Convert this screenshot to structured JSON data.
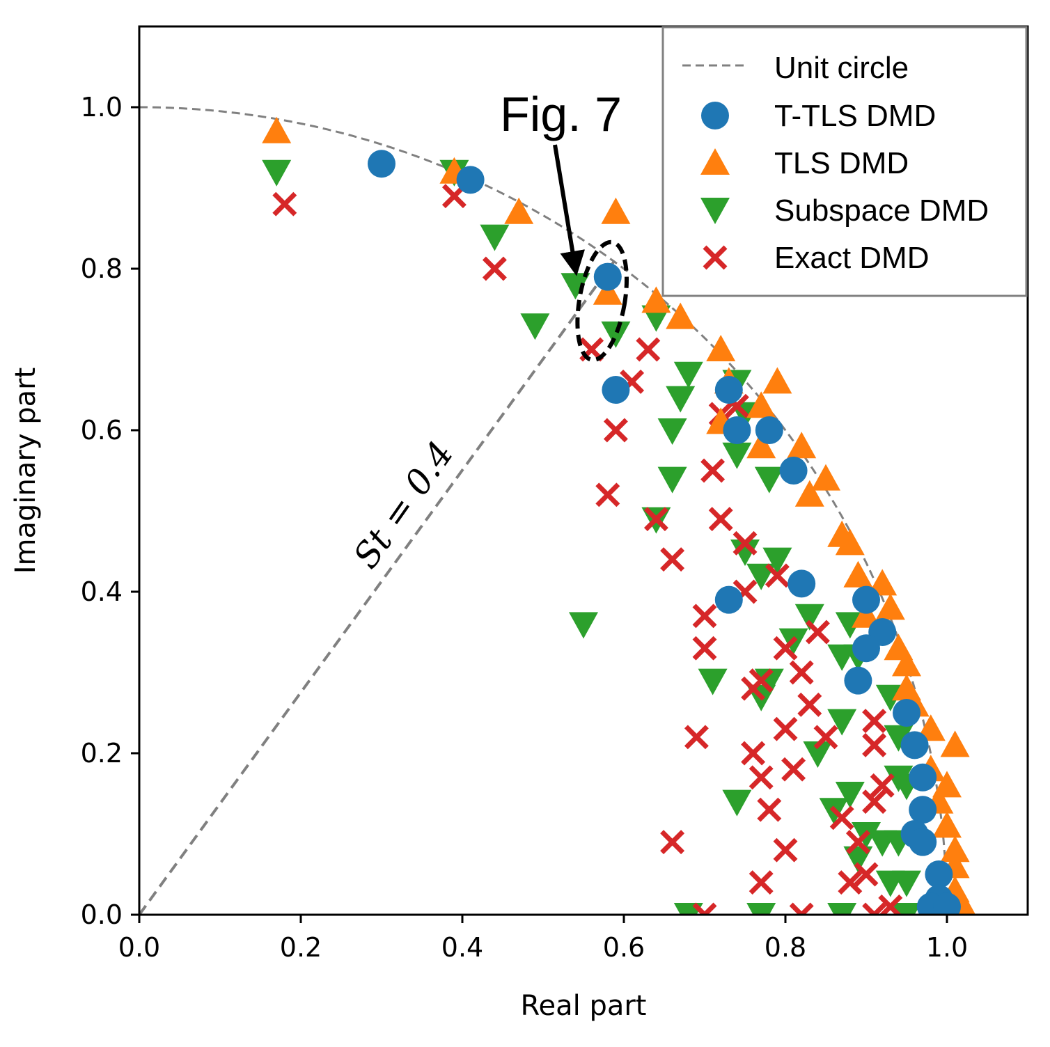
{
  "chart_data": {
    "type": "scatter",
    "title": "",
    "xlabel": "Real part",
    "ylabel": "Imaginary part",
    "xlim": [
      0.0,
      1.1
    ],
    "ylim": [
      0.0,
      1.1
    ],
    "x_ticks": [
      "0.0",
      "0.2",
      "0.4",
      "0.6",
      "0.8",
      "1.0"
    ],
    "y_ticks": [
      "0.0",
      "0.2",
      "0.4",
      "0.6",
      "0.8",
      "1.0"
    ],
    "grid": false,
    "legend_position": "top-right",
    "reference_lines": [
      {
        "name": "Unit circle",
        "style": "dashed",
        "color": "#808080"
      },
      {
        "name": "St = 0.4",
        "label": "St = 0.4",
        "x": [
          0.0,
          0.5878
        ],
        "y": [
          0.0,
          0.809
        ],
        "style": "dashed",
        "color": "#808080"
      }
    ],
    "annotations": [
      {
        "text": "Fig. 7",
        "arrow_to": [
          0.54,
          0.8
        ],
        "ellipse_center": [
          0.573,
          0.76
        ],
        "ellipse_radius": [
          0.028,
          0.074
        ]
      }
    ],
    "series": [
      {
        "name": "T-TLS DMD",
        "marker": "circle",
        "color": "#1f77b4",
        "points": [
          [
            0.3,
            0.93
          ],
          [
            0.41,
            0.91
          ],
          [
            0.58,
            0.79
          ],
          [
            0.59,
            0.65
          ],
          [
            0.73,
            0.65
          ],
          [
            0.74,
            0.6
          ],
          [
            0.78,
            0.6
          ],
          [
            0.81,
            0.55
          ],
          [
            0.82,
            0.41
          ],
          [
            0.73,
            0.39
          ],
          [
            0.9,
            0.39
          ],
          [
            0.92,
            0.35
          ],
          [
            0.9,
            0.33
          ],
          [
            0.89,
            0.29
          ],
          [
            0.95,
            0.25
          ],
          [
            0.96,
            0.21
          ],
          [
            0.97,
            0.17
          ],
          [
            0.97,
            0.13
          ],
          [
            0.96,
            0.1
          ],
          [
            0.97,
            0.09
          ],
          [
            0.99,
            0.05
          ],
          [
            0.99,
            0.02
          ],
          [
            0.98,
            0.01
          ],
          [
            1.0,
            0.01
          ]
        ]
      },
      {
        "name": "TLS DMD",
        "marker": "triangle-up",
        "color": "#ff7f0e",
        "points": [
          [
            0.17,
            0.97
          ],
          [
            0.39,
            0.92
          ],
          [
            0.47,
            0.87
          ],
          [
            0.59,
            0.87
          ],
          [
            0.58,
            0.77
          ],
          [
            0.64,
            0.76
          ],
          [
            0.67,
            0.74
          ],
          [
            0.72,
            0.7
          ],
          [
            0.79,
            0.66
          ],
          [
            0.73,
            0.66
          ],
          [
            0.72,
            0.61
          ],
          [
            0.77,
            0.63
          ],
          [
            0.77,
            0.58
          ],
          [
            0.82,
            0.58
          ],
          [
            0.85,
            0.54
          ],
          [
            0.83,
            0.52
          ],
          [
            0.87,
            0.47
          ],
          [
            0.88,
            0.46
          ],
          [
            0.89,
            0.42
          ],
          [
            0.92,
            0.41
          ],
          [
            0.93,
            0.38
          ],
          [
            0.9,
            0.37
          ],
          [
            0.94,
            0.33
          ],
          [
            0.95,
            0.31
          ],
          [
            0.95,
            0.28
          ],
          [
            0.96,
            0.26
          ],
          [
            0.98,
            0.23
          ],
          [
            1.01,
            0.21
          ],
          [
            0.98,
            0.18
          ],
          [
            1.0,
            0.16
          ],
          [
            0.99,
            0.14
          ],
          [
            1.0,
            0.11
          ],
          [
            1.01,
            0.08
          ],
          [
            1.01,
            0.06
          ],
          [
            1.01,
            0.03
          ],
          [
            1.02,
            0.01
          ]
        ]
      },
      {
        "name": "Subspace DMD",
        "marker": "triangle-down",
        "color": "#2ca02c",
        "points": [
          [
            0.17,
            0.92
          ],
          [
            0.39,
            0.92
          ],
          [
            0.44,
            0.84
          ],
          [
            0.54,
            0.78
          ],
          [
            0.49,
            0.73
          ],
          [
            0.59,
            0.72
          ],
          [
            0.64,
            0.74
          ],
          [
            0.68,
            0.67
          ],
          [
            0.67,
            0.64
          ],
          [
            0.66,
            0.6
          ],
          [
            0.66,
            0.54
          ],
          [
            0.64,
            0.49
          ],
          [
            0.74,
            0.66
          ],
          [
            0.75,
            0.62
          ],
          [
            0.74,
            0.57
          ],
          [
            0.78,
            0.54
          ],
          [
            0.75,
            0.45
          ],
          [
            0.77,
            0.42
          ],
          [
            0.79,
            0.44
          ],
          [
            0.55,
            0.36
          ],
          [
            0.71,
            0.29
          ],
          [
            0.77,
            0.27
          ],
          [
            0.78,
            0.29
          ],
          [
            0.81,
            0.34
          ],
          [
            0.83,
            0.37
          ],
          [
            0.88,
            0.36
          ],
          [
            0.89,
            0.32
          ],
          [
            0.87,
            0.32
          ],
          [
            0.93,
            0.27
          ],
          [
            0.87,
            0.24
          ],
          [
            0.84,
            0.2
          ],
          [
            0.94,
            0.22
          ],
          [
            0.94,
            0.17
          ],
          [
            0.95,
            0.16
          ],
          [
            0.88,
            0.15
          ],
          [
            0.86,
            0.13
          ],
          [
            0.74,
            0.14
          ],
          [
            0.9,
            0.1
          ],
          [
            0.92,
            0.09
          ],
          [
            0.94,
            0.09
          ],
          [
            0.89,
            0.07
          ],
          [
            0.93,
            0.04
          ],
          [
            0.95,
            0.04
          ],
          [
            0.68,
            0.0
          ],
          [
            0.77,
            0.0
          ],
          [
            0.87,
            0.0
          ],
          [
            0.95,
            0.0
          ]
        ]
      },
      {
        "name": "Exact DMD",
        "marker": "x",
        "color": "#d62728",
        "points": [
          [
            0.18,
            0.88
          ],
          [
            0.39,
            0.89
          ],
          [
            0.44,
            0.8
          ],
          [
            0.56,
            0.7
          ],
          [
            0.63,
            0.7
          ],
          [
            0.61,
            0.66
          ],
          [
            0.59,
            0.6
          ],
          [
            0.58,
            0.52
          ],
          [
            0.72,
            0.62
          ],
          [
            0.74,
            0.63
          ],
          [
            0.71,
            0.55
          ],
          [
            0.72,
            0.49
          ],
          [
            0.64,
            0.49
          ],
          [
            0.66,
            0.44
          ],
          [
            0.75,
            0.46
          ],
          [
            0.75,
            0.4
          ],
          [
            0.7,
            0.37
          ],
          [
            0.7,
            0.33
          ],
          [
            0.79,
            0.42
          ],
          [
            0.8,
            0.33
          ],
          [
            0.82,
            0.3
          ],
          [
            0.84,
            0.35
          ],
          [
            0.77,
            0.29
          ],
          [
            0.76,
            0.28
          ],
          [
            0.83,
            0.26
          ],
          [
            0.85,
            0.22
          ],
          [
            0.8,
            0.23
          ],
          [
            0.76,
            0.2
          ],
          [
            0.77,
            0.17
          ],
          [
            0.78,
            0.13
          ],
          [
            0.81,
            0.18
          ],
          [
            0.69,
            0.22
          ],
          [
            0.66,
            0.09
          ],
          [
            0.8,
            0.08
          ],
          [
            0.77,
            0.04
          ],
          [
            0.87,
            0.12
          ],
          [
            0.88,
            0.04
          ],
          [
            0.89,
            0.09
          ],
          [
            0.9,
            0.05
          ],
          [
            0.91,
            0.14
          ],
          [
            0.92,
            0.16
          ],
          [
            0.91,
            0.24
          ],
          [
            0.91,
            0.21
          ],
          [
            0.7,
            0.0
          ],
          [
            0.82,
            0.0
          ],
          [
            0.91,
            0.0
          ],
          [
            0.93,
            0.01
          ]
        ]
      }
    ]
  }
}
